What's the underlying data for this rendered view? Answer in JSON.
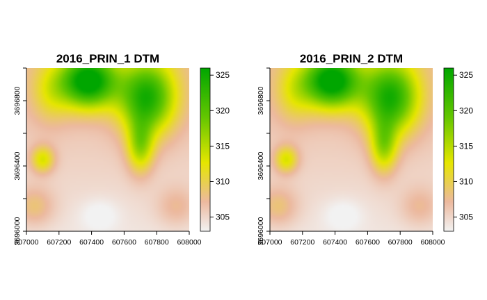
{
  "chart_data": [
    {
      "type": "heatmap",
      "title": "2016_PRIN_1 DTM",
      "x_ticks": [
        "607000",
        "607200",
        "607400",
        "607600",
        "607800",
        "608000"
      ],
      "y_ticks": [
        "3696000",
        "3696400",
        "3696800"
      ],
      "xlim": [
        607000,
        608000
      ],
      "ylim": [
        3696000,
        3697000
      ],
      "legend": {
        "ticks": [
          "305",
          "310",
          "315",
          "320",
          "325"
        ],
        "range": [
          303,
          326
        ],
        "placement": "right"
      }
    },
    {
      "type": "heatmap",
      "title": "2016_PRIN_2 DTM",
      "x_ticks": [
        "607000",
        "607200",
        "607400",
        "607600",
        "607800",
        "608000"
      ],
      "y_ticks": [
        "3696000",
        "3696400",
        "3696800"
      ],
      "xlim": [
        607000,
        608000
      ],
      "ylim": [
        3696000,
        3697000
      ],
      "legend": {
        "ticks": [
          "305",
          "310",
          "315",
          "320",
          "325"
        ],
        "range": [
          303,
          326
        ],
        "placement": "right"
      }
    }
  ],
  "colors": {
    "scale": [
      "#f2f2f2",
      "#ecb99f",
      "#e6e600",
      "#63c600",
      "#00a600"
    ]
  }
}
